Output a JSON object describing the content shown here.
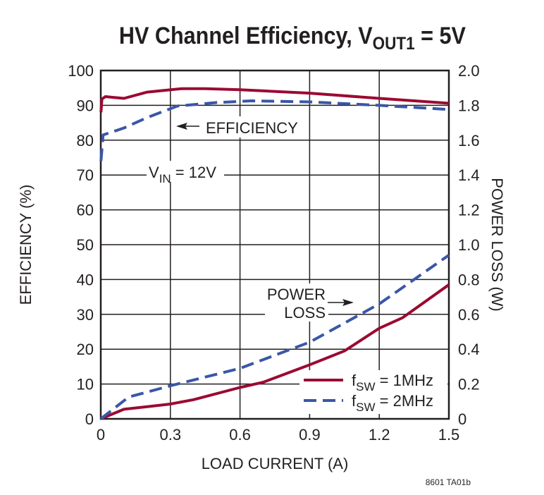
{
  "chart_data": {
    "type": "line",
    "title": {
      "main": "HV Channel Efficiency, V",
      "sub": "OUT1",
      "tail": " = 5V"
    },
    "xlabel": "LOAD CURRENT (A)",
    "ylabel": "EFFICIENCY (%)",
    "y2label": "POWER LOSS (W)",
    "xlim": [
      0,
      1.5
    ],
    "ylim": [
      0,
      100
    ],
    "y2lim": [
      0,
      2.0
    ],
    "xticks": [
      "0",
      "0.3",
      "0.6",
      "0.9",
      "1.2",
      "1.5"
    ],
    "yticks": [
      "0",
      "10",
      "20",
      "30",
      "40",
      "50",
      "60",
      "70",
      "80",
      "90",
      "100"
    ],
    "y2ticks": [
      "0",
      "0.2",
      "0.4",
      "0.6",
      "0.8",
      "1.0",
      "1.2",
      "1.4",
      "1.6",
      "1.8",
      "2.0"
    ],
    "grid": true,
    "legend_position": "bottom-right",
    "annotations": {
      "efficiency": "EFFICIENCY",
      "vin_main": "V",
      "vin_sub": "IN",
      "vin_tail": " = 12V",
      "power1": "POWER",
      "power2": "LOSS"
    },
    "footnote": "8601 TA01b",
    "series": [
      {
        "name_main": "f",
        "name_sub": "SW",
        "name_tail": " = 1MHz",
        "color": "#9b0a32",
        "dash": false,
        "axis": "efficiency",
        "x": [
          0.001,
          0.005,
          0.02,
          0.05,
          0.1,
          0.2,
          0.35,
          0.45,
          0.6,
          0.9,
          1.2,
          1.5
        ],
        "y": [
          88,
          91.8,
          92.5,
          92.3,
          92,
          93.8,
          94.8,
          94.8,
          94.5,
          93.5,
          92,
          90.6
        ]
      },
      {
        "name_main": "f",
        "name_sub": "SW",
        "name_tail": " = 2MHz",
        "color": "#3a57a7",
        "dash": true,
        "axis": "efficiency",
        "x": [
          0.001,
          0.01,
          0.1,
          0.2,
          0.33,
          0.5,
          0.65,
          0.9,
          1.2,
          1.5
        ],
        "y": [
          74,
          81.5,
          83.5,
          86.5,
          89.8,
          90.8,
          91.3,
          91,
          90,
          88.8
        ]
      },
      {
        "name_main": "f",
        "name_sub": "SW",
        "name_tail": " = 1MHz",
        "color": "#9b0a32",
        "dash": false,
        "axis": "power_loss",
        "x": [
          0,
          0.1,
          0.2,
          0.3,
          0.4,
          0.6,
          0.7,
          0.9,
          1.05,
          1.2,
          1.3,
          1.5
        ],
        "y": [
          0,
          0.055,
          0.07,
          0.085,
          0.11,
          0.18,
          0.21,
          0.31,
          0.39,
          0.52,
          0.58,
          0.77
        ]
      },
      {
        "name_main": "f",
        "name_sub": "SW",
        "name_tail": " = 2MHz",
        "color": "#3a57a7",
        "dash": true,
        "axis": "power_loss",
        "x": [
          0,
          0.12,
          0.3,
          0.6,
          0.9,
          1.2,
          1.5
        ],
        "y": [
          0,
          0.125,
          0.19,
          0.29,
          0.44,
          0.66,
          0.94
        ]
      }
    ]
  }
}
